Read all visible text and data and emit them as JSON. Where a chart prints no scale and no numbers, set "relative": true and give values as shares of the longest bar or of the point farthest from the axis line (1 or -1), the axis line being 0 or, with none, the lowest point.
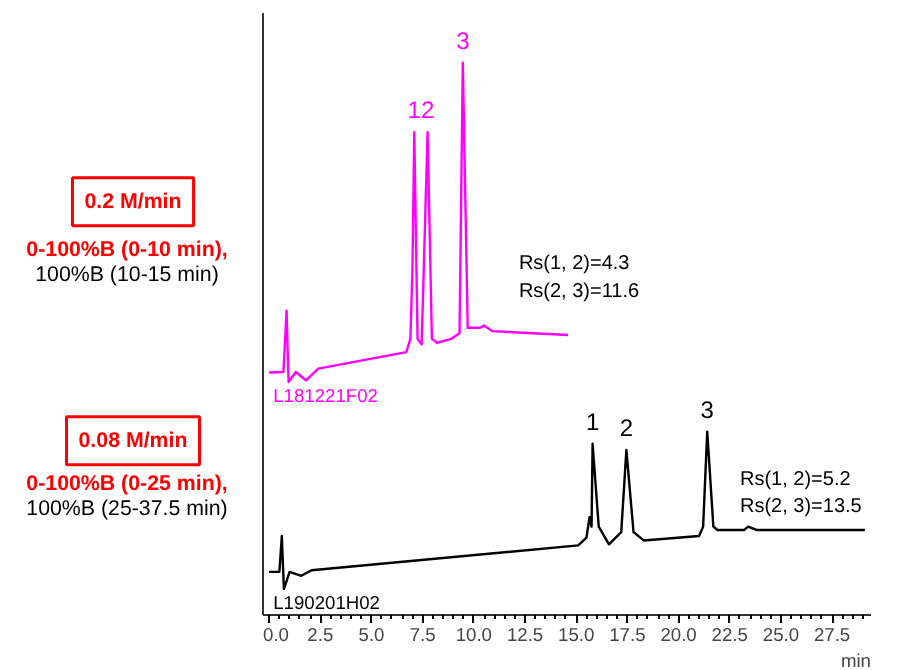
{
  "chart_data": {
    "type": "line",
    "relative": true,
    "xlabel": "min",
    "xlim": [
      -0.3,
      29.4
    ],
    "xticks": [
      {
        "value": 0,
        "label": "0.0"
      },
      {
        "value": 2.5,
        "label": "2.5"
      },
      {
        "value": 5,
        "label": "5.0"
      },
      {
        "value": 7.5,
        "label": "7.5"
      },
      {
        "value": 10,
        "label": "10.0"
      },
      {
        "value": 12.5,
        "label": "12.5"
      },
      {
        "value": 15,
        "label": "15.0"
      },
      {
        "value": 17.5,
        "label": "17.5"
      },
      {
        "value": 20,
        "label": "20.0"
      },
      {
        "value": 22.5,
        "label": "22.5"
      },
      {
        "value": 25,
        "label": "25.0"
      },
      {
        "value": 27.5,
        "label": "27.5"
      }
    ],
    "series": [
      {
        "name": "L181221F02",
        "color": "#ff00ff",
        "x": [
          0,
          0.7,
          0.85,
          0.95,
          1.3,
          1.8,
          2.4,
          6.7,
          6.9,
          7.0,
          7.09,
          7.25,
          7.45,
          7.74,
          7.95,
          8.2,
          8.9,
          9.3,
          9.46,
          9.7,
          10.3,
          10.5,
          10.9,
          14.6
        ],
        "values": [
          0.439,
          0.44,
          0.551,
          0.422,
          0.44,
          0.425,
          0.446,
          0.476,
          0.5,
          0.626,
          0.874,
          0.5,
          0.49,
          0.874,
          0.5,
          0.493,
          0.5,
          0.51,
          1.0,
          0.52,
          0.52,
          0.524,
          0.514,
          0.507
        ]
      },
      {
        "name": "L190201H02",
        "color": "#000000",
        "x": [
          0,
          0.5,
          0.62,
          0.72,
          1.0,
          1.57,
          2.07,
          15.1,
          15.5,
          15.65,
          15.75,
          15.8,
          16.1,
          16.6,
          17.2,
          17.45,
          17.8,
          18.3,
          21.0,
          21.2,
          21.4,
          21.7,
          21.9,
          23.2,
          23.4,
          23.8,
          29.1
        ],
        "values": [
          0.078,
          0.078,
          0.143,
          0.047,
          0.078,
          0.071,
          0.081,
          0.126,
          0.14,
          0.177,
          0.16,
          0.31,
          0.16,
          0.128,
          0.15,
          0.299,
          0.15,
          0.135,
          0.143,
          0.16,
          0.332,
          0.16,
          0.154,
          0.154,
          0.16,
          0.154,
          0.154
        ]
      }
    ],
    "annotations": [
      {
        "text": "1",
        "x": 7.09,
        "y": 0.874
      },
      {
        "text": "2",
        "x": 7.74,
        "y": 0.874
      },
      {
        "text": "3",
        "x": 9.46,
        "y": 1.0
      },
      {
        "text": "1",
        "x": 15.8,
        "y": 0.31
      },
      {
        "text": "2",
        "x": 17.45,
        "y": 0.299
      },
      {
        "text": "3",
        "x": 21.4,
        "y": 0.332
      },
      "Rs(1, 2)=4.3",
      "Rs(2, 3)=11.6",
      "Rs(1, 2)=5.2",
      "Rs(2, 3)=13.5",
      "0.2 M/min",
      "0-100%B (0-10 min),",
      "100%B (10-15 min)",
      "0.08 M/min",
      "0-100%B (0-25 min),",
      "100%B (25-37.5 min)"
    ]
  }
}
